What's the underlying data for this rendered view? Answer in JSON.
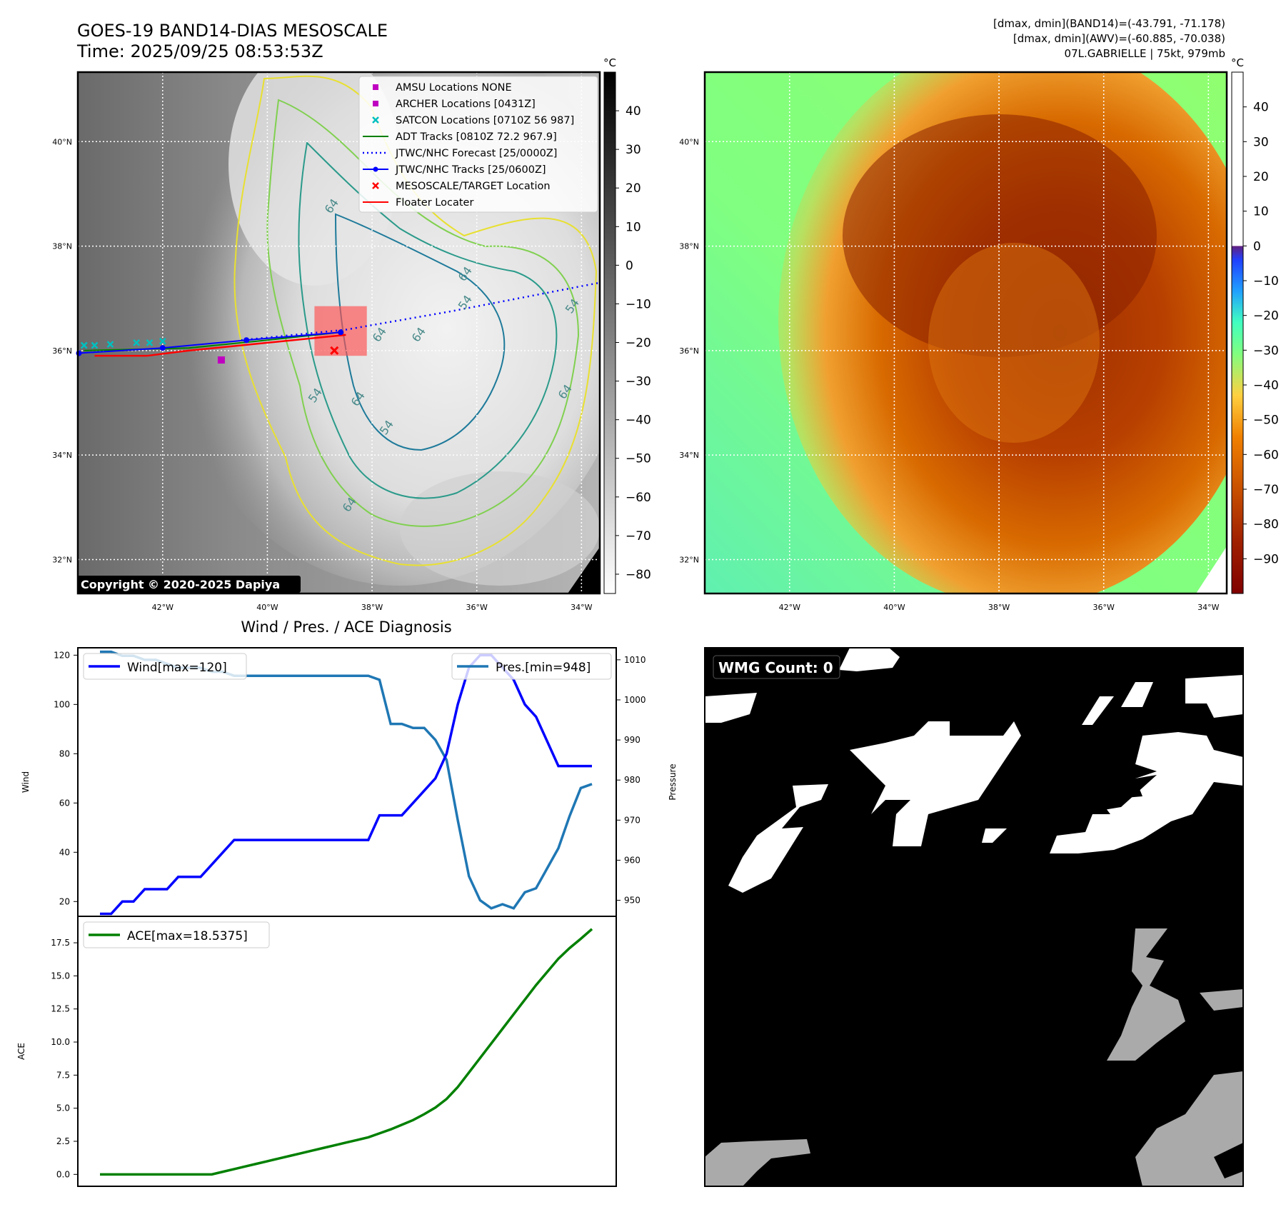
{
  "header": {
    "title_line1": "GOES-19 BAND14-DIAS MESOSCALE",
    "title_line2": "Time: 2025/09/25 08:53:53Z",
    "stats_line1": "[dmax, dmin](BAND14)=(-43.791, -71.178)",
    "stats_line2": "[dmax, dmin](AWV)=(-60.885, -70.038)",
    "stats_line3": "07L.GABRIELLE | 75kt, 979mb"
  },
  "map_axes": {
    "lat_labels": [
      "40°N",
      "38°N",
      "36°N",
      "34°N",
      "32°N"
    ],
    "lat_values": [
      40,
      38,
      36,
      34,
      32
    ],
    "lon_labels": [
      "42°W",
      "40°W",
      "38°W",
      "36°W",
      "34°W"
    ],
    "lon_values": [
      -42,
      -40,
      -38,
      -36,
      -34
    ],
    "lat_range": [
      31.35,
      41.33
    ],
    "lon_range": [
      -43.62,
      -33.65
    ]
  },
  "ir_panel": {
    "colorbar_unit": "°C",
    "colorbar_ticks": [
      "40",
      "30",
      "20",
      "10",
      "0",
      "−10",
      "−20",
      "−30",
      "−40",
      "−50",
      "−60",
      "−70",
      "−80"
    ],
    "colorbar_values": [
      40,
      30,
      20,
      10,
      0,
      -10,
      -20,
      -30,
      -40,
      -50,
      -60,
      -70,
      -80
    ],
    "colorbar_range": [
      -85,
      50
    ],
    "copyright": "Copyright © 2020-2025 Dapiya",
    "contour_labels": [
      "64",
      "64",
      "54",
      "64",
      "64",
      "54",
      "64",
      "54",
      "64",
      "54",
      "64"
    ],
    "legend": [
      {
        "label": "AMSU Locations NONE",
        "marker": "square",
        "color": "#c000c0"
      },
      {
        "label": "ARCHER Locations [0431Z]",
        "marker": "square",
        "color": "#c000c0"
      },
      {
        "label": "SATCON Locations [0710Z 56 987]",
        "marker": "x",
        "color": "#00bfbf"
      },
      {
        "label": "ADT Tracks [0810Z 72.2 967.9]",
        "marker": "line",
        "color": "#008000"
      },
      {
        "label": "JTWC/NHC Forecast [25/0000Z]",
        "marker": "dotted",
        "color": "#0000ff"
      },
      {
        "label": "JTWC/NHC Tracks [25/0600Z]",
        "marker": "line-dot",
        "color": "#0000ff"
      },
      {
        "label": "MESOSCALE/TARGET Location",
        "marker": "x",
        "color": "#ff0000"
      },
      {
        "label": "Floater Locater",
        "marker": "line",
        "color": "#ff0000"
      }
    ],
    "tracks": {
      "forecast": [
        [
          -40.5,
          36.2
        ],
        [
          -38.5,
          36.4
        ],
        [
          -36.5,
          36.75
        ],
        [
          -33.65,
          37.3
        ]
      ],
      "best_track": [
        [
          -43.6,
          35.95
        ],
        [
          -42.0,
          36.05
        ],
        [
          -40.4,
          36.2
        ],
        [
          -38.6,
          36.35
        ]
      ],
      "adt": [
        [
          -43.5,
          36.0
        ],
        [
          -41.5,
          36.05
        ],
        [
          -40.0,
          36.2
        ],
        [
          -38.6,
          36.35
        ]
      ],
      "floater": [
        [
          -43.3,
          35.9
        ],
        [
          -42.3,
          35.9
        ],
        [
          -41.5,
          36.0
        ],
        [
          -40.0,
          36.15
        ],
        [
          -38.5,
          36.3
        ]
      ],
      "target": [
        -38.72,
        36.0
      ],
      "archer": [
        -40.88,
        35.82
      ],
      "satcon": [
        [
          -43.5,
          36.1
        ],
        [
          -43.3,
          36.1
        ],
        [
          -43.0,
          36.12
        ],
        [
          -42.5,
          36.15
        ],
        [
          -42.25,
          36.15
        ],
        [
          -42.0,
          36.18
        ]
      ],
      "mesoscale_box": {
        "lon": [
          -39.1,
          -38.1
        ],
        "lat": [
          35.9,
          36.85
        ]
      }
    }
  },
  "awv_panel": {
    "colorbar_unit": "°C",
    "colorbar_ticks": [
      "40",
      "30",
      "20",
      "10",
      "0",
      "−10",
      "−20",
      "−30",
      "−40",
      "−50",
      "−60",
      "−70",
      "−80",
      "−90"
    ],
    "colorbar_values": [
      40,
      30,
      20,
      10,
      0,
      -10,
      -20,
      -30,
      -40,
      -50,
      -60,
      -70,
      -80,
      -90
    ],
    "colorbar_range": [
      -100,
      50
    ]
  },
  "wmg_panel": {
    "count_label": "WMG Count: 0"
  },
  "colors": {
    "wind": "#0000ff",
    "pressure": "#1f77b4",
    "ace": "#008000",
    "target": "#ff0000",
    "archer": "#c000c0",
    "satcon": "#00bfbf"
  },
  "chart_data": [
    {
      "type": "line",
      "title": "Wind / Pres. / ACE Diagnosis",
      "xlabel": "",
      "ylabel": "Wind",
      "ylabel_right": "Pressure",
      "ylim": [
        14,
        123
      ],
      "ylim_right": [
        946,
        1013
      ],
      "yticks": [
        20,
        40,
        60,
        80,
        100,
        120
      ],
      "yticks_right": [
        950,
        960,
        970,
        980,
        990,
        1000,
        1010
      ],
      "x": [
        0,
        1,
        2,
        3,
        4,
        5,
        6,
        7,
        8,
        9,
        10,
        11,
        12,
        13,
        14,
        15,
        16,
        17,
        18,
        19,
        20,
        21,
        22,
        23,
        24,
        25,
        26,
        27,
        28,
        29,
        30,
        31,
        32,
        33,
        34,
        35,
        36,
        37,
        38,
        39,
        40,
        41,
        42,
        43,
        44
      ],
      "series": [
        {
          "name": "Wind[max=120]",
          "axis": "left",
          "values": [
            15,
            15,
            20,
            20,
            25,
            25,
            25,
            30,
            30,
            30,
            35,
            40,
            45,
            45,
            45,
            45,
            45,
            45,
            45,
            45,
            45,
            45,
            45,
            45,
            45,
            55,
            55,
            55,
            60,
            65,
            70,
            80,
            100,
            115,
            120,
            120,
            115,
            110,
            100,
            95,
            85,
            75,
            75,
            75,
            75
          ]
        },
        {
          "name": "Pres.[min=948]",
          "axis": "right",
          "values": [
            1012,
            1012,
            1011,
            1011,
            1010,
            1010,
            1009,
            1008,
            1008,
            1008,
            1007,
            1007,
            1006,
            1006,
            1006,
            1006,
            1006,
            1006,
            1006,
            1006,
            1006,
            1006,
            1006,
            1006,
            1006,
            1005,
            994,
            994,
            993,
            993,
            990,
            985,
            970,
            956,
            950,
            948,
            949,
            948,
            952,
            953,
            958,
            963,
            971,
            978,
            979
          ]
        }
      ]
    },
    {
      "type": "line",
      "title": "",
      "xlabel": "",
      "ylabel": "ACE",
      "ylim": [
        -0.9,
        19.5
      ],
      "yticks": [
        "0.0",
        "2.5",
        "5.0",
        "7.5",
        "10.0",
        "12.5",
        "15.0",
        "17.5"
      ],
      "ytick_values": [
        0,
        2.5,
        5,
        7.5,
        10,
        12.5,
        15,
        17.5
      ],
      "x": [
        0,
        1,
        2,
        3,
        4,
        5,
        6,
        7,
        8,
        9,
        10,
        11,
        12,
        13,
        14,
        15,
        16,
        17,
        18,
        19,
        20,
        21,
        22,
        23,
        24,
        25,
        26,
        27,
        28,
        29,
        30,
        31,
        32,
        33,
        34,
        35,
        36,
        37,
        38,
        39,
        40,
        41,
        42,
        43,
        44
      ],
      "series": [
        {
          "name": "ACE[max=18.5375]",
          "values": [
            0,
            0,
            0,
            0,
            0,
            0,
            0,
            0,
            0,
            0,
            0,
            0.2,
            0.4,
            0.6,
            0.8,
            1.0,
            1.2,
            1.4,
            1.6,
            1.8,
            2.0,
            2.2,
            2.4,
            2.6,
            2.8,
            3.1,
            3.4,
            3.75,
            4.1,
            4.55,
            5.05,
            5.7,
            6.6,
            7.7,
            8.8,
            9.9,
            11.0,
            12.1,
            13.2,
            14.3,
            15.3,
            16.3,
            17.1,
            17.8,
            18.5375
          ]
        }
      ]
    }
  ]
}
